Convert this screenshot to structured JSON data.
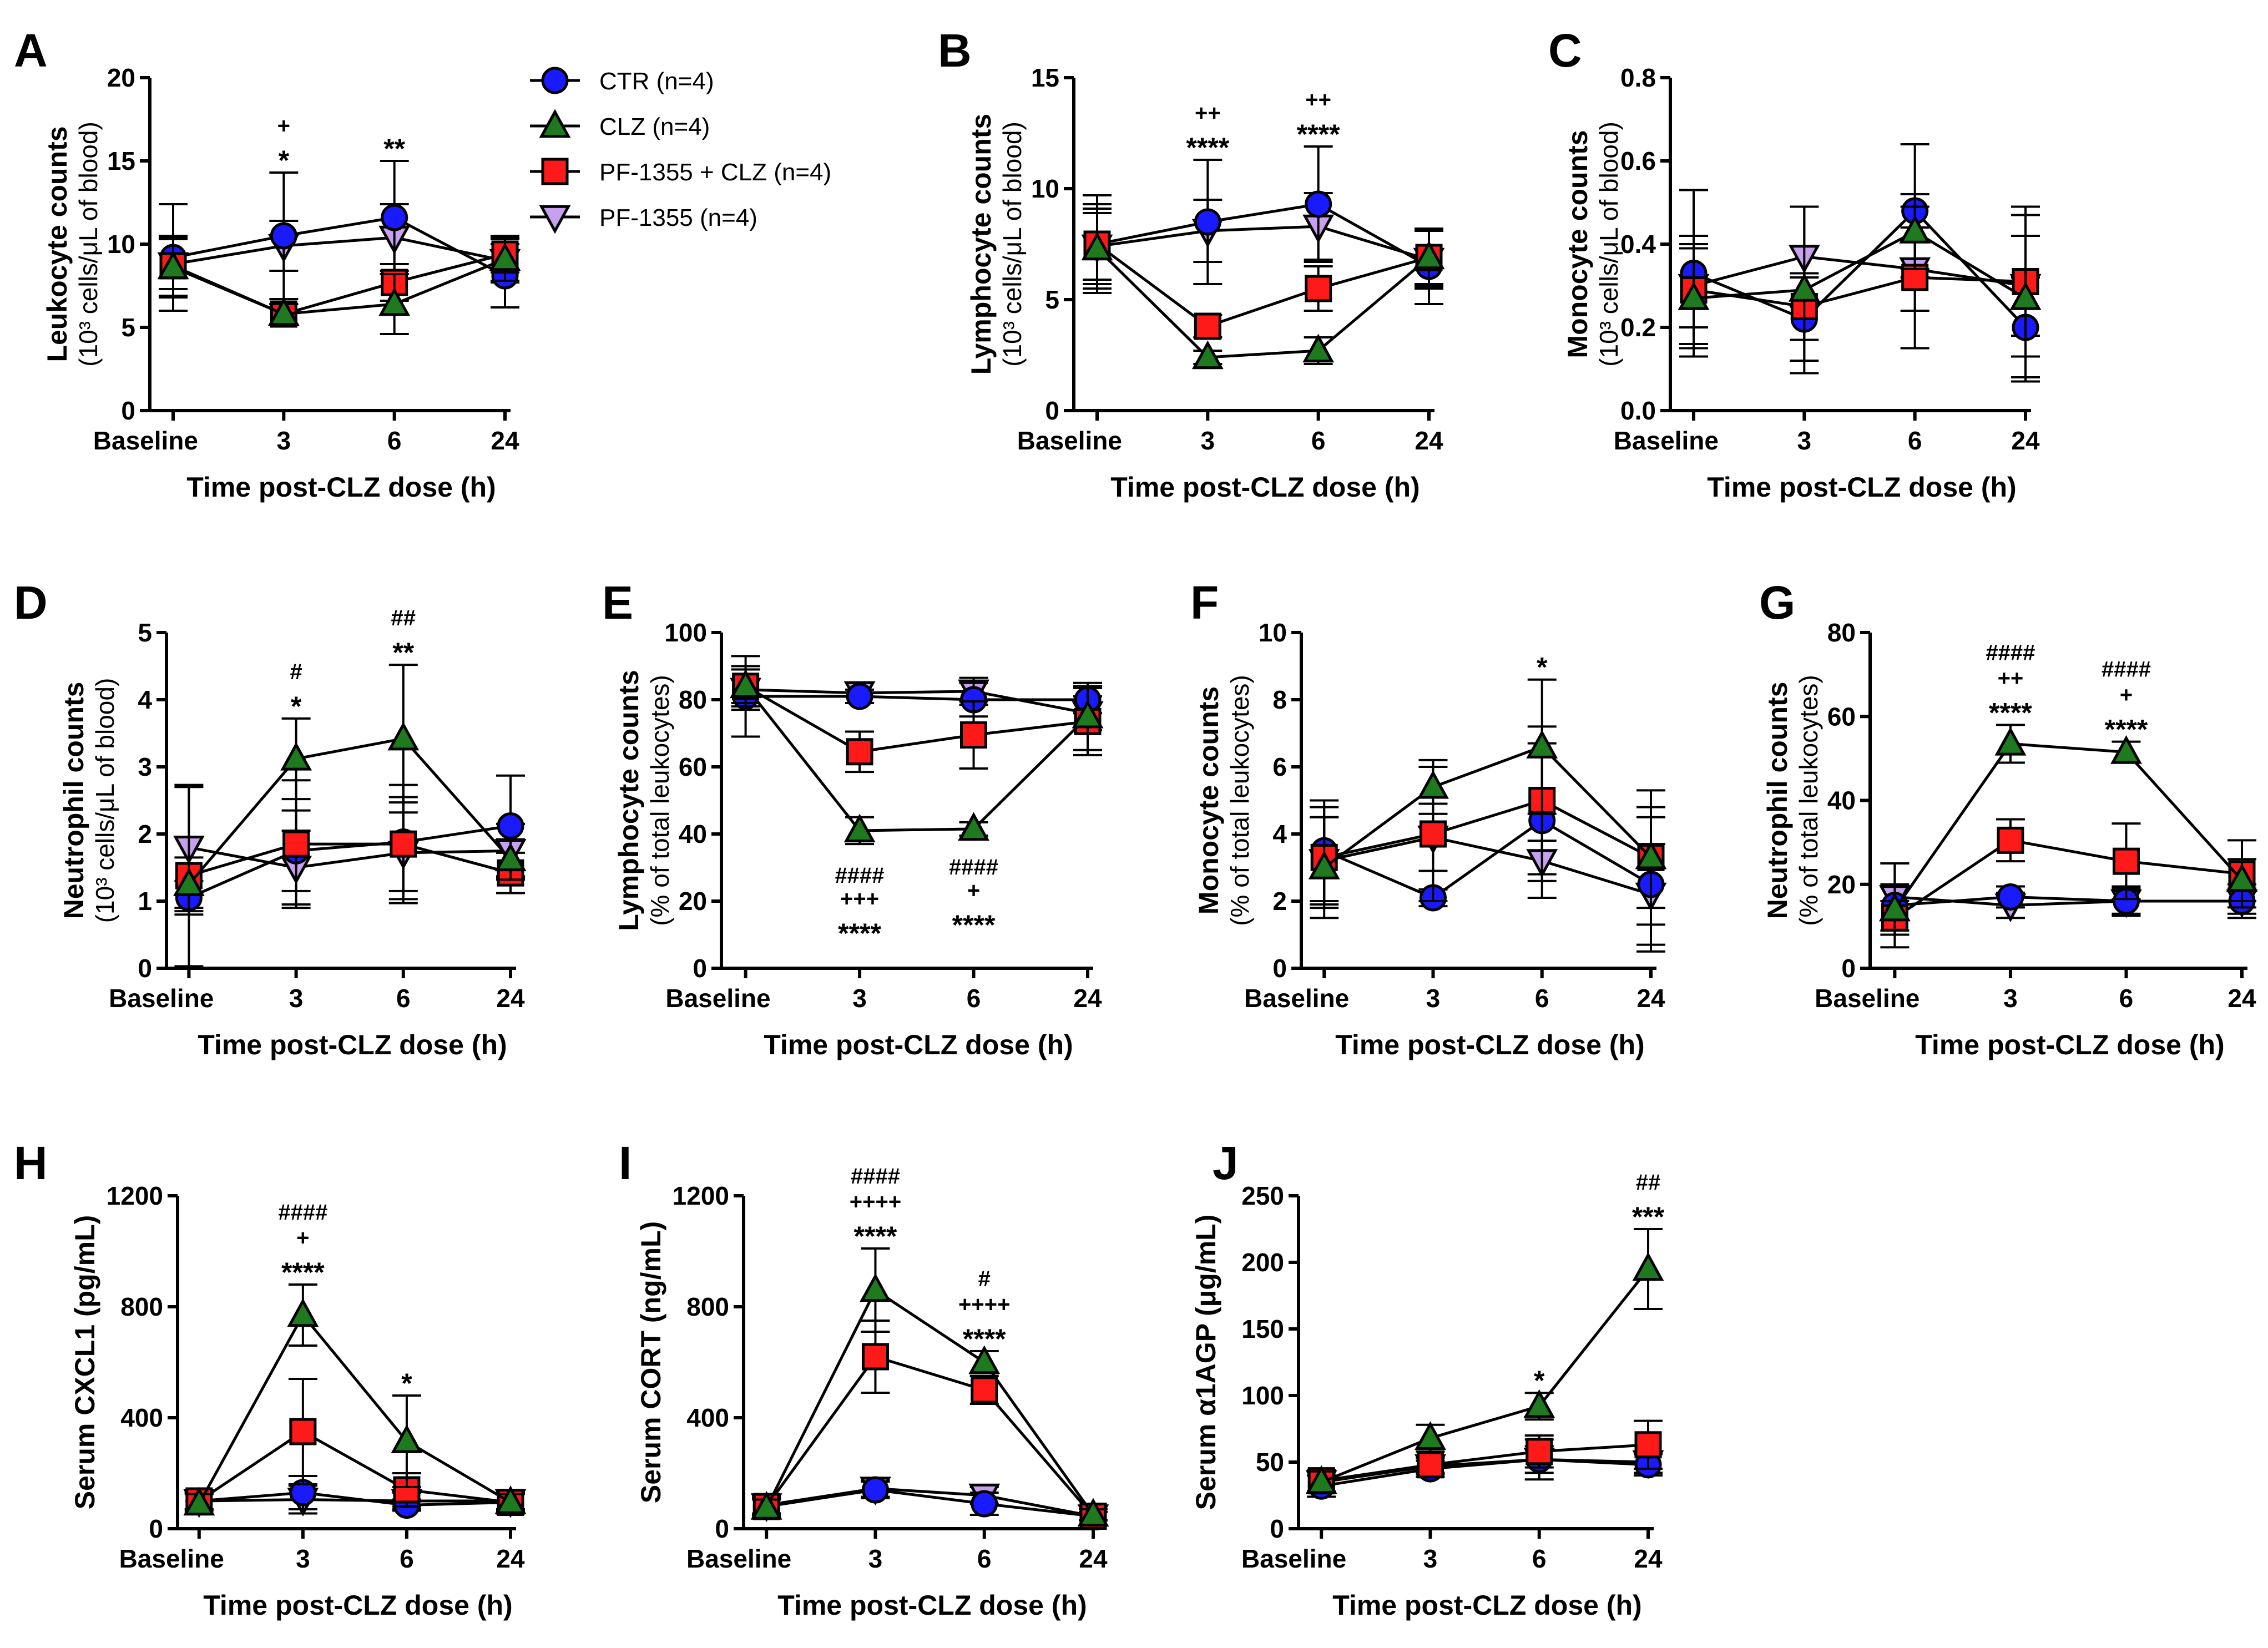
{
  "series": [
    {
      "key": "CTR",
      "name": "CTR (n=4)",
      "color": "#1a1aff",
      "marker": "circle"
    },
    {
      "key": "CLZ",
      "name": "CLZ (n=4)",
      "color": "#1f7a1f",
      "marker": "triangle"
    },
    {
      "key": "PFCLZ",
      "name": "PF-1355 + CLZ (n=4)",
      "color": "#ff1a1a",
      "marker": "square"
    },
    {
      "key": "PF",
      "name": "PF-1355 (n=4)",
      "color": "#c8a0f0",
      "marker": "triangle-down"
    }
  ],
  "chart_data": [
    {
      "id": "A",
      "type": "line",
      "letter": "A",
      "ylabel": "Leukocyte counts",
      "ylabel_sub": "(10³ cells/μL of blood)",
      "xlabel": "Time post-CLZ dose (h)",
      "categories": [
        "Baseline",
        "3",
        "6",
        "24"
      ],
      "ylim": [
        0,
        20
      ],
      "yticks": [
        "0",
        "5",
        "10",
        "15",
        "20"
      ],
      "values": {
        "CTR": [
          9.2,
          10.5,
          11.6,
          8.1
        ],
        "CLZ": [
          8.6,
          5.8,
          6.4,
          9.1
        ],
        "PFCLZ": [
          8.7,
          5.8,
          7.7,
          9.4
        ],
        "PF": [
          8.8,
          9.9,
          10.4,
          9.0
        ]
      },
      "errors": {
        "CTR": [
          3.2,
          3.8,
          3.4,
          1.9
        ],
        "CLZ": [
          1.8,
          0.6,
          1.8,
          1.3
        ],
        "PFCLZ": [
          1.8,
          0.6,
          1.1,
          1.1
        ],
        "PF": [
          1.5,
          1.5,
          2.0,
          1.3
        ]
      },
      "annotations": [
        {
          "x": 1,
          "lines": [
            "+",
            "*"
          ]
        },
        {
          "x": 2,
          "lines": [
            "**"
          ]
        }
      ]
    },
    {
      "id": "B",
      "type": "line",
      "letter": "B",
      "ylabel": "Lymphocyte counts",
      "ylabel_sub": "(10³ cells/μL of blood)",
      "xlabel": "Time post-CLZ dose (h)",
      "categories": [
        "Baseline",
        "3",
        "6",
        "24"
      ],
      "ylim": [
        0,
        15
      ],
      "yticks": [
        "0",
        "5",
        "10",
        "15"
      ],
      "values": {
        "CTR": [
          7.5,
          8.5,
          9.3,
          6.5
        ],
        "CLZ": [
          7.3,
          2.4,
          2.7,
          6.9
        ],
        "PFCLZ": [
          7.5,
          3.8,
          5.5,
          6.9
        ],
        "PF": [
          7.4,
          8.1,
          8.3,
          6.8
        ]
      },
      "errors": {
        "CTR": [
          2.2,
          2.8,
          2.6,
          1.7
        ],
        "CLZ": [
          1.8,
          0.3,
          0.6,
          1.3
        ],
        "PFCLZ": [
          1.8,
          0.5,
          1.0,
          1.2
        ],
        "PF": [
          1.5,
          1.4,
          1.5,
          1.3
        ]
      },
      "annotations": [
        {
          "x": 1,
          "lines": [
            "++",
            "****"
          ]
        },
        {
          "x": 2,
          "lines": [
            "++",
            "****"
          ]
        }
      ]
    },
    {
      "id": "C",
      "type": "line",
      "letter": "C",
      "ylabel": "Monocyte counts",
      "ylabel_sub": "(10³ cells/μL of blood)",
      "xlabel": "Time post-CLZ dose (h)",
      "categories": [
        "Baseline",
        "3",
        "6",
        "24"
      ],
      "ylim": [
        0,
        0.8
      ],
      "yticks": [
        "0.0",
        "0.2",
        "0.4",
        "0.6",
        "0.8"
      ],
      "values": {
        "CTR": [
          0.33,
          0.22,
          0.48,
          0.2
        ],
        "CLZ": [
          0.27,
          0.29,
          0.43,
          0.27
        ],
        "PFCLZ": [
          0.29,
          0.25,
          0.32,
          0.31
        ],
        "PF": [
          0.3,
          0.37,
          0.34,
          0.3
        ]
      },
      "errors": {
        "CTR": [
          0.2,
          0.1,
          0.16,
          0.12
        ],
        "CLZ": [
          0.12,
          0.2,
          0.09,
          0.2
        ],
        "PFCLZ": [
          0.13,
          0.08,
          0.17,
          0.18
        ],
        "PF": [
          0.1,
          0.12,
          0.1,
          0.12
        ]
      },
      "annotations": []
    },
    {
      "id": "D",
      "type": "line",
      "letter": "D",
      "ylabel": "Neutrophil counts",
      "ylabel_sub": "(10³ cells/μL of blood)",
      "xlabel": "Time post-CLZ dose (h)",
      "categories": [
        "Baseline",
        "3",
        "6",
        "24"
      ],
      "ylim": [
        0,
        5
      ],
      "yticks": [
        "0",
        "1",
        "2",
        "3",
        "4",
        "5"
      ],
      "values": {
        "CTR": [
          1.05,
          1.75,
          1.88,
          2.12
        ],
        "CLZ": [
          1.25,
          3.12,
          3.42,
          1.62
        ],
        "PFCLZ": [
          1.38,
          1.85,
          1.85,
          1.42
        ],
        "PF": [
          1.8,
          1.5,
          1.72,
          1.75
        ]
      },
      "errors": {
        "CTR": [
          0.25,
          0.6,
          0.85,
          0.75
        ],
        "CLZ": [
          0.4,
          0.6,
          1.1,
          0.3
        ],
        "PFCLZ": [
          1.35,
          0.95,
          0.7,
          0.3
        ],
        "PF": [
          0.9,
          0.55,
          0.75,
          0.4
        ]
      },
      "annotations": [
        {
          "x": 1,
          "lines": [
            "#",
            "*"
          ]
        },
        {
          "x": 2,
          "lines": [
            "##",
            "**"
          ]
        }
      ]
    },
    {
      "id": "E",
      "type": "line",
      "letter": "E",
      "ylabel": "Lymphocyte counts",
      "ylabel_sub": "(% of total leukocytes)",
      "xlabel": "Time post-CLZ dose (h)",
      "categories": [
        "Baseline",
        "3",
        "6",
        "24"
      ],
      "ylim": [
        0,
        100
      ],
      "yticks": [
        "0",
        "20",
        "40",
        "60",
        "80",
        "100"
      ],
      "values": {
        "CTR": [
          81,
          81,
          80,
          80
        ],
        "CLZ": [
          84,
          41,
          41.5,
          75
        ],
        "PFCLZ": [
          84,
          64.5,
          69.5,
          73.5
        ],
        "PF": [
          83,
          82,
          82.5,
          76
        ]
      },
      "errors": {
        "CTR": [
          12,
          2,
          5,
          4
        ],
        "CLZ": [
          6,
          4,
          2,
          10
        ],
        "PFCLZ": [
          5,
          6,
          10,
          10
        ],
        "PF": [
          6,
          3,
          4,
          5
        ]
      },
      "annotations": [
        {
          "x": 1,
          "lines": [
            "####",
            "+++",
            "****"
          ],
          "below": true
        },
        {
          "x": 2,
          "lines": [
            "####",
            "+",
            "****"
          ],
          "below": true
        }
      ]
    },
    {
      "id": "F",
      "type": "line",
      "letter": "F",
      "ylabel": "Monocyte counts",
      "ylabel_sub": "(% of total leukocytes)",
      "xlabel": "Time post-CLZ dose (h)",
      "categories": [
        "Baseline",
        "3",
        "6",
        "24"
      ],
      "ylim": [
        0,
        10
      ],
      "yticks": [
        "0",
        "2",
        "4",
        "6",
        "8",
        "10"
      ],
      "values": {
        "CTR": [
          3.5,
          2.1,
          4.4,
          2.5
        ],
        "CLZ": [
          3.0,
          5.4,
          6.6,
          3.3
        ],
        "PFCLZ": [
          3.3,
          4.0,
          5.0,
          3.3
        ],
        "PF": [
          3.2,
          3.9,
          3.2,
          2.2
        ]
      },
      "errors": {
        "CTR": [
          1.5,
          0.25,
          2.3,
          2.0
        ],
        "CLZ": [
          1.5,
          0.8,
          2.0,
          1.5
        ],
        "PFCLZ": [
          1.5,
          2.0,
          2.2,
          2.0
        ],
        "PF": [
          1.3,
          1.0,
          0.6,
          1.5
        ]
      },
      "annotations": [
        {
          "x": 2,
          "lines": [
            "*"
          ]
        }
      ]
    },
    {
      "id": "G",
      "type": "line",
      "letter": "G",
      "ylabel": "Neutrophil counts",
      "ylabel_sub": "(% of total leukocytes)",
      "xlabel": "Time post-CLZ dose (h)",
      "categories": [
        "Baseline",
        "3",
        "6",
        "24"
      ],
      "ylim": [
        0,
        80
      ],
      "yticks": [
        "0",
        "20",
        "40",
        "60",
        "80"
      ],
      "values": {
        "CTR": [
          15,
          17,
          16,
          16
        ],
        "CLZ": [
          14,
          53.5,
          51.5,
          21
        ],
        "PFCLZ": [
          12,
          30.5,
          25.5,
          22.5
        ],
        "PF": [
          17,
          15,
          16,
          16
        ]
      },
      "errors": {
        "CTR": [
          10,
          2.5,
          3.5,
          3
        ],
        "CLZ": [
          6,
          4.5,
          2.5,
          5
        ],
        "PFCLZ": [
          4,
          5,
          9,
          8
        ],
        "PF": [
          8,
          3,
          3,
          4
        ]
      },
      "annotations": [
        {
          "x": 1,
          "lines": [
            "####",
            "++",
            "****"
          ]
        },
        {
          "x": 2,
          "lines": [
            "####",
            "+",
            "****"
          ]
        }
      ]
    },
    {
      "id": "H",
      "type": "line",
      "letter": "H",
      "ylabel": "Serum CXCL1 (pg/mL)",
      "ylabel_sub": "",
      "xlabel": "Time post-CLZ dose (h)",
      "categories": [
        "Baseline",
        "3",
        "6",
        "24"
      ],
      "ylim": [
        0,
        1200
      ],
      "yticks": [
        "0",
        "400",
        "800",
        "1200"
      ],
      "values": {
        "CTR": [
          100,
          130,
          85,
          95
        ],
        "CLZ": [
          90,
          770,
          315,
          95
        ],
        "PFCLZ": [
          100,
          350,
          140,
          95
        ],
        "PF": [
          100,
          105,
          100,
          100
        ]
      },
      "errors": {
        "CTR": [
          30,
          60,
          20,
          40
        ],
        "CLZ": [
          35,
          110,
          165,
          30
        ],
        "PFCLZ": [
          35,
          190,
          60,
          30
        ],
        "PF": [
          30,
          50,
          30,
          30
        ]
      },
      "annotations": [
        {
          "x": 1,
          "lines": [
            "####",
            "+",
            "****"
          ]
        },
        {
          "x": 2,
          "lines": [
            "*"
          ]
        }
      ]
    },
    {
      "id": "I",
      "type": "line",
      "letter": "I",
      "ylabel": "Serum CORT (ng/mL)",
      "ylabel_sub": "",
      "xlabel": "Time post-CLZ dose (h)",
      "categories": [
        "Baseline",
        "3",
        "6",
        "24"
      ],
      "ylim": [
        0,
        1200
      ],
      "yticks": [
        "0",
        "400",
        "800",
        "1200"
      ],
      "values": {
        "CTR": [
          80,
          140,
          90,
          45
        ],
        "CLZ": [
          75,
          860,
          600,
          50
        ],
        "PFCLZ": [
          80,
          620,
          500,
          45
        ],
        "PF": [
          85,
          145,
          120,
          45
        ]
      },
      "errors": {
        "CTR": [
          30,
          30,
          40,
          15
        ],
        "CLZ": [
          30,
          150,
          40,
          20
        ],
        "PFCLZ": [
          30,
          130,
          50,
          15
        ],
        "PF": [
          30,
          30,
          30,
          15
        ]
      },
      "annotations": [
        {
          "x": 1,
          "lines": [
            "####",
            "++++",
            "****"
          ]
        },
        {
          "x": 2,
          "lines": [
            "#",
            "++++",
            "****"
          ]
        }
      ]
    },
    {
      "id": "J",
      "type": "line",
      "letter": "J",
      "ylabel": "Serum α1AGP (μg/mL)",
      "ylabel_sub": "",
      "xlabel": "Time post-CLZ dose (h)",
      "categories": [
        "Baseline",
        "3",
        "6",
        "24"
      ],
      "ylim": [
        0,
        250
      ],
      "yticks": [
        "0",
        "50",
        "100",
        "150",
        "200",
        "250"
      ],
      "values": {
        "CTR": [
          32,
          45,
          52,
          48
        ],
        "CLZ": [
          35,
          68,
          92,
          195
        ],
        "PFCLZ": [
          36,
          48,
          58,
          63
        ],
        "PF": [
          35,
          47,
          52,
          50
        ]
      },
      "errors": {
        "CTR": [
          8,
          6,
          15,
          8
        ],
        "CLZ": [
          8,
          10,
          10,
          30
        ],
        "PFCLZ": [
          8,
          6,
          12,
          18
        ],
        "PF": [
          8,
          6,
          10,
          8
        ]
      },
      "annotations": [
        {
          "x": 3,
          "lines": [
            "##",
            "***"
          ]
        },
        {
          "x": 2,
          "lines": [
            "*"
          ]
        }
      ]
    }
  ]
}
